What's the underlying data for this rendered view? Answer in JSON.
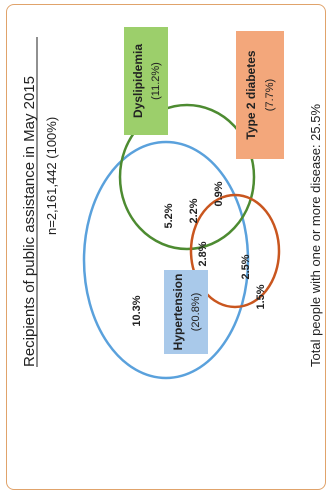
{
  "title": "Recipients of public assistance in May 2015",
  "subtitle": "n=2,161,442 (100%)",
  "footer": "Total people with one or more disease: 25.5%",
  "sets": {
    "hypertension": {
      "name": "Hypertension",
      "value": "(20.8%)",
      "stroke": "#5aa1dc",
      "box": "#a9c9ea"
    },
    "dyslipidemia": {
      "name": "Dyslipidemia",
      "value": "(11.2%)",
      "stroke": "#4d8b31",
      "box": "#9ccf6b"
    },
    "diabetes": {
      "name": "Type 2 diabetes",
      "value": "(7.7%)",
      "stroke": "#c9561f",
      "box": "#f3a77b"
    }
  },
  "regions": {
    "hypertension_only": "10.3%",
    "dyslipidemia_only": "2.2%",
    "diabetes_only": "1.5%",
    "hyp_dys": "5.2%",
    "all_three": "2.8%",
    "dys_dia": "0.9%",
    "hyp_dia": "2.5%"
  }
}
